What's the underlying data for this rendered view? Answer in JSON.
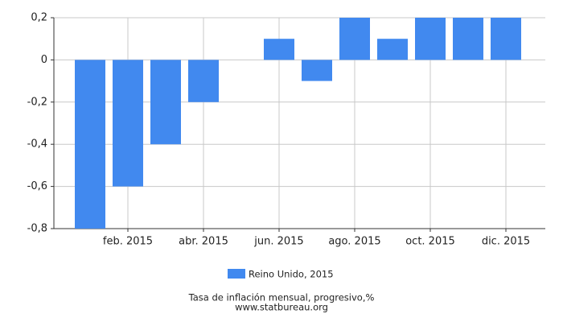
{
  "chart_data": {
    "type": "bar",
    "title": "Tasa de inflación mensual, progresivo,%",
    "subtitle": "www.statbureau.org",
    "categories": [
      null,
      "feb. 2015",
      null,
      "abr. 2015",
      null,
      "jun. 2015",
      null,
      "ago. 2015",
      null,
      "oct. 2015",
      null,
      "dic. 2015"
    ],
    "series": [
      {
        "name": "Reino Unido, 2015",
        "color": "#4189ef",
        "values": [
          -0.8,
          -0.6,
          -0.4,
          -0.2,
          0,
          0.1,
          -0.1,
          0.2,
          0.1,
          0.2,
          0.2,
          0.2
        ]
      }
    ],
    "ylim": [
      -0.8,
      0.2
    ],
    "yticks": [
      {
        "value": -0.8,
        "label": "-0,8"
      },
      {
        "value": -0.6,
        "label": "-0,6"
      },
      {
        "value": -0.4,
        "label": "-0,4"
      },
      {
        "value": -0.2,
        "label": "-0,2"
      },
      0,
      {
        "value": 0.2,
        "label": "0,2"
      }
    ],
    "grid": true,
    "legend": "bottom"
  }
}
